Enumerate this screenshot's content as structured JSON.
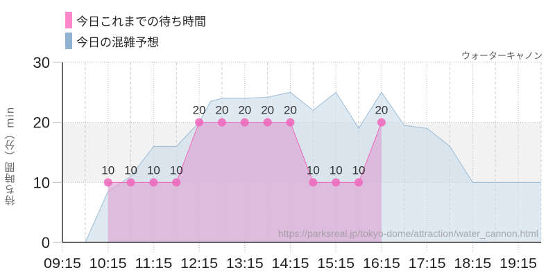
{
  "legend": {
    "items": [
      {
        "label": "今日これまでの待ち時間",
        "color": "#ff88cc"
      },
      {
        "label": "今日の混雑予想",
        "color": "#8fb3d1"
      }
    ]
  },
  "attraction_name": "ウォーターキャノン",
  "watermark": "https://parksreal.jp/tokyo-dome/attraction/water_cannon.html",
  "chart_data": {
    "type": "area",
    "title": "",
    "xlabel": "",
    "ylabel": "待ち時間（分）min",
    "ylim": [
      0,
      30
    ],
    "yticks": [
      0,
      10,
      20,
      30
    ],
    "xticks": [
      "09:15",
      "10:15",
      "11:15",
      "12:15",
      "13:15",
      "14:15",
      "15:15",
      "16:15",
      "17:15",
      "18:15",
      "19:15"
    ],
    "grid": true,
    "legend_position": "top-left",
    "series": [
      {
        "name": "今日これまでの待ち時間",
        "color": "#ee66bb",
        "type": "line+markers",
        "x": [
          "10:15",
          "10:45",
          "11:15",
          "11:45",
          "12:15",
          "12:45",
          "13:15",
          "13:45",
          "14:15",
          "14:45",
          "15:15",
          "15:45",
          "16:15"
        ],
        "values": [
          10,
          10,
          10,
          10,
          20,
          20,
          20,
          20,
          20,
          10,
          10,
          10,
          20
        ]
      },
      {
        "name": "今日の混雑予想",
        "color": "#8fb3d1",
        "type": "area",
        "x": [
          "09:15",
          "09:45",
          "10:15",
          "10:45",
          "11:15",
          "11:45",
          "12:15",
          "12:30",
          "12:45",
          "13:15",
          "13:45",
          "14:15",
          "14:45",
          "15:15",
          "15:45",
          "16:15",
          "16:45",
          "17:15",
          "17:45",
          "18:15",
          "18:45",
          "19:15",
          "19:45"
        ],
        "values": [
          0,
          0,
          8.5,
          11,
          16,
          16,
          20,
          23.5,
          24,
          24,
          24.2,
          25,
          22,
          25,
          19,
          25,
          19.5,
          19,
          16,
          10,
          10,
          10,
          10
        ]
      }
    ]
  }
}
